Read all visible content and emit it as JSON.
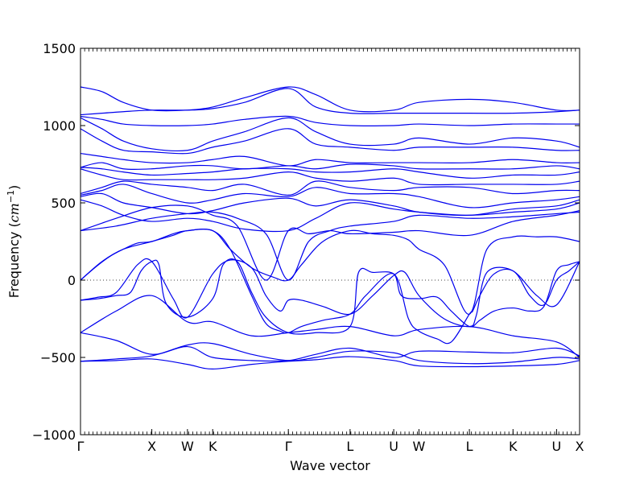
{
  "chart_data": {
    "type": "line",
    "title": "",
    "xlabel": "Wave vector",
    "ylabel_main": "Frequency (",
    "ylabel_unit": "cm",
    "ylabel_exp": "−1",
    "ylabel_close": ")",
    "ylim": [
      -1000,
      1500
    ],
    "yticks": [
      -1000,
      -500,
      0,
      500,
      1000,
      1500
    ],
    "ytick_labels": [
      "−1000",
      "−500",
      "0",
      "500",
      "1000",
      "1500"
    ],
    "xlim": [
      0,
      7
    ],
    "high_symmetry_points": [
      {
        "label": "Γ",
        "x": 0
      },
      {
        "label": "X",
        "x": 1
      },
      {
        "label": "W",
        "x": 1.5
      },
      {
        "label": "K",
        "x": 1.854
      },
      {
        "label": "Γ",
        "x": 2.915
      },
      {
        "label": "L",
        "x": 3.781
      },
      {
        "label": "U",
        "x": 4.393
      },
      {
        "label": "W",
        "x": 4.747
      },
      {
        "label": "L",
        "x": 5.454
      },
      {
        "label": "K",
        "x": 6.066
      },
      {
        "label": "U",
        "x": 6.677
      },
      {
        "label": "X",
        "x": 7
      }
    ],
    "zero_line": true,
    "line_color": "#0000ee",
    "series": [
      {
        "x": [
          0,
          0.5,
          1,
          1.5,
          1.854,
          2.4,
          2.915,
          3.3,
          3.781,
          4.393,
          4.747,
          5.454,
          6.066,
          6.677,
          7
        ],
        "y": [
          -525,
          -520,
          -510,
          -545,
          -575,
          -545,
          -525,
          -515,
          -495,
          -520,
          -555,
          -560,
          -555,
          -545,
          -520
        ]
      },
      {
        "x": [
          0,
          0.5,
          1,
          1.5,
          1.854,
          2.4,
          2.915,
          3.3,
          3.781,
          4.393,
          4.747,
          5.454,
          6.066,
          6.677,
          7
        ],
        "y": [
          -525,
          -510,
          -490,
          -420,
          -410,
          -480,
          -520,
          -500,
          -460,
          -470,
          -520,
          -540,
          -530,
          -500,
          -510
        ]
      },
      {
        "x": [
          0,
          0.5,
          1,
          1.5,
          1.854,
          2.4,
          2.915,
          3.3,
          3.781,
          4.393,
          4.747,
          5.454,
          6.066,
          6.677,
          7
        ],
        "y": [
          -340,
          -390,
          -480,
          -430,
          -500,
          -520,
          -520,
          -480,
          -440,
          -500,
          -460,
          -465,
          -470,
          -440,
          -490
        ]
      },
      {
        "x": [
          0,
          0.5,
          1,
          1.5,
          1.854,
          2.4,
          2.915,
          3.3,
          3.781,
          4.393,
          4.747,
          5.454,
          6.066,
          6.677,
          7
        ],
        "y": [
          -340,
          -200,
          -100,
          -270,
          -270,
          -360,
          -340,
          -320,
          -300,
          -360,
          -320,
          -300,
          -360,
          -400,
          -500
        ]
      },
      {
        "x": [
          0,
          0.25,
          0.5,
          0.7,
          0.85,
          1,
          1.1,
          1.2,
          1.5,
          1.854,
          2.0,
          2.2,
          2.4,
          2.6,
          2.915,
          3.3,
          3.781,
          3.9,
          4.1,
          4.393,
          4.5,
          4.747,
          5.0,
          5.2,
          5.454,
          5.6,
          5.8,
          6.066,
          6.3,
          6.5,
          6.677,
          6.85,
          7
        ],
        "y": [
          -130,
          -120,
          -100,
          -80,
          60,
          120,
          100,
          -150,
          -240,
          -120,
          100,
          120,
          -80,
          -240,
          -340,
          -340,
          -300,
          50,
          50,
          40,
          -100,
          -120,
          -110,
          -200,
          -300,
          -260,
          -200,
          -180,
          -200,
          -170,
          60,
          100,
          120
        ]
      },
      {
        "x": [
          0,
          0.25,
          0.5,
          0.8,
          1,
          1.3,
          1.5,
          1.854,
          2.1,
          2.4,
          2.6,
          2.8,
          2.915,
          3.1,
          3.4,
          3.781,
          4.1,
          4.393,
          4.55,
          4.747,
          5.1,
          5.454,
          5.55,
          5.7,
          6.066,
          6.3,
          6.5,
          6.677,
          6.85,
          7
        ],
        "y": [
          -130,
          -110,
          -80,
          100,
          120,
          -120,
          -240,
          40,
          130,
          80,
          -100,
          -200,
          -130,
          -130,
          -170,
          -220,
          -100,
          30,
          50,
          -100,
          -250,
          -300,
          -230,
          50,
          60,
          -100,
          -160,
          0,
          60,
          120
        ]
      },
      {
        "x": [
          0,
          0.2,
          0.4,
          0.6,
          0.8,
          1,
          1.3,
          1.5,
          1.854,
          2.1,
          2.4,
          2.6,
          2.8,
          2.915,
          3.1,
          3.4,
          3.781,
          4.0,
          4.393,
          4.6,
          4.747,
          5.0,
          5.2,
          5.454,
          5.5,
          5.6,
          5.8,
          6.066,
          6.4,
          6.677,
          7
        ],
        "y": [
          0,
          80,
          150,
          200,
          240,
          250,
          300,
          320,
          320,
          200,
          -100,
          -280,
          -330,
          -340,
          -300,
          -260,
          -220,
          -100,
          40,
          -250,
          -330,
          -380,
          -400,
          -220,
          -200,
          -100,
          40,
          60,
          -100,
          -160,
          120
        ]
      },
      {
        "x": [
          0,
          0.3,
          0.6,
          1,
          1.3,
          1.5,
          1.854,
          2.1,
          2.4,
          2.7,
          2.915,
          3.1,
          3.4,
          3.781,
          4.1,
          4.393,
          4.6,
          4.747,
          5.1,
          5.454,
          5.7,
          6.066,
          6.4,
          6.677,
          7
        ],
        "y": [
          0,
          120,
          200,
          250,
          290,
          320,
          320,
          200,
          80,
          20,
          0,
          100,
          250,
          320,
          300,
          290,
          260,
          200,
          100,
          -220,
          200,
          280,
          280,
          280,
          250
        ]
      },
      {
        "x": [
          0,
          0.5,
          1,
          1.5,
          1.854,
          2.2,
          2.6,
          2.915,
          3.2,
          3.5,
          3.781,
          4.393,
          4.747,
          5.454,
          6.066,
          6.677,
          7
        ],
        "y": [
          320,
          350,
          400,
          430,
          440,
          400,
          300,
          0,
          250,
          320,
          350,
          380,
          420,
          400,
          410,
          430,
          440
        ]
      },
      {
        "x": [
          0,
          0.5,
          1,
          1.5,
          1.854,
          2.2,
          2.6,
          2.915,
          3.2,
          3.5,
          3.781,
          4.393,
          4.747,
          5.454,
          6.066,
          6.677,
          7
        ],
        "y": [
          320,
          400,
          470,
          480,
          420,
          350,
          0,
          320,
          300,
          320,
          300,
          310,
          320,
          290,
          380,
          420,
          450
        ]
      },
      {
        "x": [
          0,
          0.3,
          0.6,
          1,
          1.5,
          1.854,
          2.3,
          2.915,
          3.3,
          3.781,
          4.393,
          4.747,
          5.454,
          6.066,
          6.677,
          7
        ],
        "y": [
          520,
          480,
          420,
          380,
          400,
          380,
          330,
          320,
          400,
          500,
          460,
          440,
          420,
          440,
          460,
          500
        ]
      },
      {
        "x": [
          0,
          0.3,
          0.6,
          1,
          1.5,
          1.854,
          2.3,
          2.915,
          3.3,
          3.781,
          4.393,
          4.747,
          5.454,
          6.066,
          6.677,
          7
        ],
        "y": [
          540,
          560,
          500,
          470,
          430,
          450,
          500,
          530,
          480,
          520,
          480,
          440,
          420,
          460,
          480,
          520
        ]
      },
      {
        "x": [
          0,
          0.3,
          0.6,
          1,
          1.5,
          1.854,
          2.3,
          2.915,
          3.3,
          3.781,
          4.393,
          4.747,
          5.454,
          6.066,
          6.677,
          7
        ],
        "y": [
          550,
          580,
          620,
          560,
          500,
          520,
          560,
          540,
          600,
          560,
          560,
          540,
          470,
          500,
          520,
          540
        ]
      },
      {
        "x": [
          0,
          0.3,
          0.6,
          1,
          1.5,
          1.854,
          2.3,
          2.915,
          3.3,
          3.781,
          4.393,
          4.747,
          5.454,
          6.066,
          6.677,
          7
        ],
        "y": [
          560,
          600,
          640,
          620,
          600,
          580,
          620,
          550,
          640,
          600,
          580,
          600,
          600,
          560,
          580,
          580
        ]
      },
      {
        "x": [
          0,
          0.3,
          0.6,
          1,
          1.5,
          1.854,
          2.3,
          2.915,
          3.3,
          3.781,
          4.393,
          4.747,
          5.454,
          6.066,
          6.677,
          7
        ],
        "y": [
          720,
          680,
          650,
          650,
          650,
          650,
          660,
          700,
          660,
          640,
          660,
          620,
          620,
          620,
          620,
          640
        ]
      },
      {
        "x": [
          0,
          0.3,
          0.6,
          1,
          1.5,
          1.854,
          2.3,
          2.915,
          3.3,
          3.781,
          4.393,
          4.747,
          5.454,
          6.066,
          6.677,
          7
        ],
        "y": [
          730,
          720,
          700,
          680,
          690,
          700,
          720,
          720,
          700,
          700,
          720,
          700,
          660,
          680,
          680,
          700
        ]
      },
      {
        "x": [
          0,
          0.3,
          0.6,
          1,
          1.5,
          1.854,
          2.3,
          2.915,
          3.3,
          3.781,
          4.393,
          4.747,
          5.454,
          6.066,
          6.677,
          7
        ],
        "y": [
          730,
          760,
          720,
          720,
          740,
          740,
          720,
          740,
          720,
          750,
          740,
          720,
          720,
          720,
          740,
          720
        ]
      },
      {
        "x": [
          0,
          0.3,
          0.6,
          1,
          1.5,
          1.854,
          2.3,
          2.915,
          3.3,
          3.781,
          4.393,
          4.747,
          5.454,
          6.066,
          6.677,
          7
        ],
        "y": [
          820,
          800,
          780,
          760,
          760,
          780,
          800,
          740,
          780,
          760,
          760,
          760,
          760,
          780,
          760,
          760
        ]
      },
      {
        "x": [
          0,
          0.3,
          0.6,
          1,
          1.5,
          1.854,
          2.3,
          2.915,
          3.3,
          3.781,
          4.393,
          4.747,
          5.454,
          6.066,
          6.677,
          7
        ],
        "y": [
          980,
          900,
          840,
          830,
          820,
          860,
          900,
          980,
          880,
          860,
          840,
          860,
          860,
          860,
          840,
          840
        ]
      },
      {
        "x": [
          0,
          0.3,
          0.6,
          1,
          1.5,
          1.854,
          2.3,
          2.915,
          3.3,
          3.781,
          4.393,
          4.747,
          5.454,
          6.066,
          6.677,
          7
        ],
        "y": [
          1050,
          980,
          900,
          850,
          840,
          900,
          960,
          1050,
          960,
          880,
          880,
          920,
          880,
          920,
          900,
          860
        ]
      },
      {
        "x": [
          0,
          0.3,
          0.6,
          1,
          1.5,
          1.854,
          2.3,
          2.915,
          3.3,
          3.781,
          4.393,
          4.747,
          5.454,
          6.066,
          6.677,
          7
        ],
        "y": [
          1060,
          1040,
          1010,
          1000,
          1000,
          1010,
          1040,
          1060,
          1020,
          1000,
          1000,
          1010,
          1000,
          1010,
          1010,
          1010
        ]
      },
      {
        "x": [
          0,
          0.3,
          0.6,
          1,
          1.5,
          1.854,
          2.3,
          2.915,
          3.3,
          3.781,
          4.393,
          4.747,
          5.454,
          6.066,
          6.677,
          7
        ],
        "y": [
          1070,
          1080,
          1090,
          1100,
          1100,
          1110,
          1150,
          1240,
          1120,
          1080,
          1080,
          1080,
          1080,
          1080,
          1090,
          1100
        ]
      },
      {
        "x": [
          0,
          0.3,
          0.6,
          1,
          1.5,
          1.854,
          2.3,
          2.915,
          3.3,
          3.781,
          4.393,
          4.747,
          5.454,
          6.066,
          6.677,
          7
        ],
        "y": [
          1250,
          1220,
          1150,
          1100,
          1100,
          1120,
          1180,
          1250,
          1200,
          1100,
          1100,
          1150,
          1170,
          1150,
          1100,
          1100
        ]
      }
    ]
  }
}
